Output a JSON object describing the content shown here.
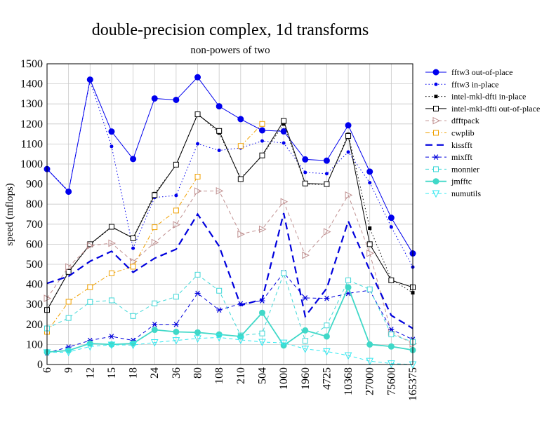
{
  "chart_data": {
    "type": "line",
    "title": "double-precision complex, 1d transforms",
    "subtitle": "non-powers of two",
    "xlabel": "",
    "ylabel": "speed (mflops)",
    "ylim": [
      0,
      1500
    ],
    "yticks": [
      0,
      100,
      200,
      300,
      400,
      500,
      600,
      700,
      800,
      900,
      1000,
      1100,
      1200,
      1300,
      1400,
      1500
    ],
    "grid": true,
    "legend_position": "right",
    "categories": [
      "6",
      "9",
      "12",
      "15",
      "18",
      "24",
      "36",
      "80",
      "108",
      "210",
      "504",
      "1000",
      "1960",
      "4725",
      "10368",
      "27000",
      "75600",
      "165375"
    ],
    "series": [
      {
        "name": "fftw3 out-of-place",
        "color": "#0000ee",
        "dash": "",
        "marker": "circle-filled",
        "values": [
          975,
          862,
          1421,
          1162,
          1025,
          1327,
          1320,
          1433,
          1288,
          1224,
          1168,
          1163,
          1023,
          1017,
          1193,
          962,
          732,
          554
        ]
      },
      {
        "name": "fftw3 in-place",
        "color": "#0000ee",
        "dash": "dot",
        "marker": "dot",
        "values": [
          975,
          866,
          1415,
          1088,
          580,
          833,
          843,
          1101,
          1068,
          1080,
          1115,
          1105,
          958,
          952,
          1060,
          907,
          686,
          486
        ]
      },
      {
        "name": "intel-mkl-dfti in-place",
        "color": "#000000",
        "dash": "dot",
        "marker": "square-filled",
        "values": [
          270,
          460,
          598,
          685,
          633,
          852,
          995,
          1250,
          1155,
          930,
          1040,
          1200,
          900,
          898,
          1148,
          680,
          425,
          358
        ]
      },
      {
        "name": "intel-mkl-dfti out-of-place",
        "color": "#000000",
        "dash": "",
        "marker": "square-open",
        "values": [
          272,
          462,
          600,
          687,
          630,
          845,
          997,
          1248,
          1165,
          925,
          1043,
          1215,
          903,
          900,
          1140,
          600,
          420,
          385
        ]
      },
      {
        "name": "dfftpack",
        "color": "#c09090",
        "dash": "dash",
        "marker": "triangle-right",
        "values": [
          330,
          487,
          593,
          605,
          513,
          608,
          697,
          865,
          866,
          650,
          675,
          812,
          545,
          662,
          845,
          555,
          162,
          103
        ]
      },
      {
        "name": "cwplib",
        "color": "#f0a000",
        "dash": "dashdot",
        "marker": "square-open",
        "values": [
          163,
          313,
          386,
          455,
          488,
          685,
          768,
          937,
          null,
          1090,
          1200,
          null,
          null,
          null,
          null,
          null,
          null,
          null
        ]
      },
      {
        "name": "kissfft",
        "color": "#0000dd",
        "dash": "longdash",
        "marker": "none",
        "values": [
          405,
          440,
          515,
          565,
          460,
          530,
          575,
          750,
          590,
          295,
          325,
          755,
          240,
          380,
          715,
          470,
          245,
          180
        ]
      },
      {
        "name": "mixfft",
        "color": "#0000dd",
        "dash": "dash",
        "marker": "asterisk",
        "values": [
          58,
          87,
          120,
          140,
          120,
          200,
          200,
          355,
          272,
          303,
          318,
          458,
          332,
          330,
          355,
          370,
          175,
          125
        ]
      },
      {
        "name": "monnier",
        "color": "#40d8d8",
        "dash": "dash",
        "marker": "square-open",
        "values": [
          180,
          232,
          312,
          320,
          242,
          305,
          338,
          448,
          368,
          145,
          155,
          455,
          118,
          195,
          420,
          375,
          150,
          113
        ]
      },
      {
        "name": "jmfftc",
        "color": "#40d8c8",
        "dash": "",
        "marker": "circle-filled",
        "values": [
          62,
          70,
          105,
          100,
          105,
          173,
          163,
          160,
          150,
          140,
          258,
          95,
          170,
          140,
          385,
          100,
          90,
          72
        ]
      },
      {
        "name": "numutils",
        "color": "#30e8f0",
        "dash": "dash",
        "marker": "triangle-down",
        "values": [
          60,
          62,
          90,
          98,
          97,
          110,
          120,
          130,
          135,
          123,
          112,
          108,
          78,
          65,
          45,
          17,
          5,
          0
        ]
      }
    ]
  }
}
